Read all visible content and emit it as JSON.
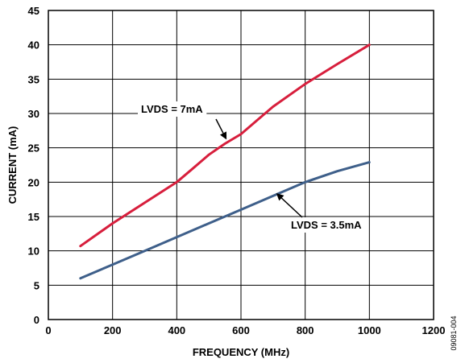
{
  "chart_data": {
    "type": "line",
    "title": "",
    "xlabel": "FREQUENCY (MHz)",
    "ylabel": "CURRENT (mA)",
    "xlim": [
      0,
      1200
    ],
    "ylim": [
      0,
      45
    ],
    "xticks": [
      0,
      200,
      400,
      600,
      800,
      1000,
      1200
    ],
    "yticks": [
      0,
      5,
      10,
      15,
      20,
      25,
      30,
      35,
      40,
      45
    ],
    "grid": true,
    "legend": "none",
    "series": [
      {
        "color": "#d71e3c",
        "x": [
          100,
          200,
          300,
          400,
          450,
          500,
          550,
          600,
          650,
          700,
          800,
          900,
          1000
        ],
        "y": [
          10.7,
          14.0,
          17.0,
          20.0,
          22.0,
          24.0,
          25.6,
          27.0,
          29.0,
          31.0,
          34.3,
          37.2,
          40.0
        ]
      },
      {
        "color": "#3e5f8a",
        "x": [
          100,
          200,
          300,
          400,
          500,
          600,
          700,
          800,
          900,
          1000
        ],
        "y": [
          6.0,
          8.0,
          10.0,
          12.0,
          14.0,
          16.0,
          18.0,
          20.0,
          21.6,
          22.9
        ]
      }
    ],
    "annotations": [
      {
        "text": "LVDS = 7mA",
        "points_to": [
          555,
          26.2
        ]
      },
      {
        "text": "LVDS = 3.5mA",
        "points_to": [
          710,
          18.4
        ]
      }
    ],
    "figure_code": "09081-004"
  }
}
